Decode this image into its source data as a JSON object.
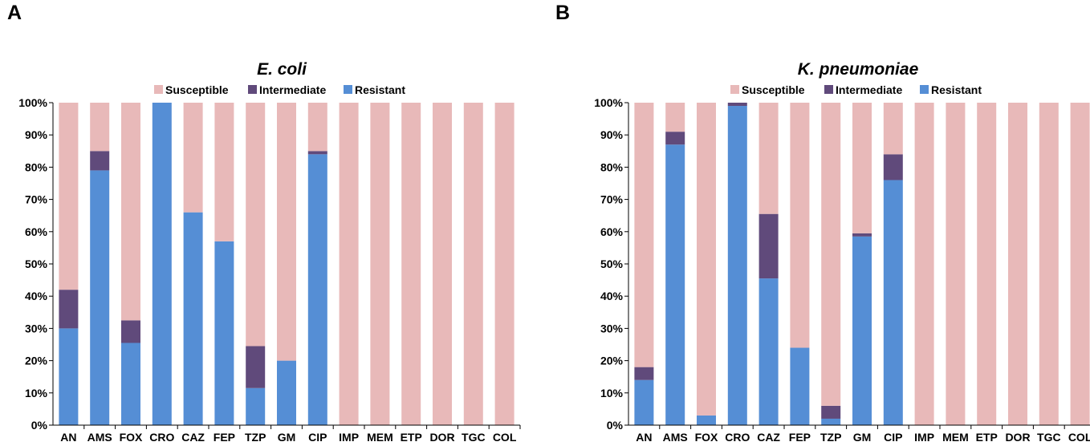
{
  "panels": [
    {
      "letter": "A"
    },
    {
      "letter": "B"
    }
  ],
  "colors": {
    "susceptible": "#e8b9b9",
    "intermediate": "#604a7b",
    "resistant": "#558ed5",
    "axis": "#000000"
  },
  "chart_data": [
    {
      "type": "bar",
      "stacked": true,
      "title": "E. coli",
      "categories": [
        "AN",
        "AMS",
        "FOX",
        "CRO",
        "CAZ",
        "FEP",
        "TZP",
        "GM",
        "CIP",
        "IMP",
        "MEM",
        "ETP",
        "DOR",
        "TGC",
        "COL"
      ],
      "series": [
        {
          "name": "Resistant",
          "values": [
            30,
            79,
            25.5,
            100,
            66,
            57,
            11.5,
            20,
            84,
            0,
            0,
            0,
            0,
            0,
            0
          ]
        },
        {
          "name": "Intermediate",
          "values": [
            12,
            6,
            7,
            0,
            0,
            0,
            13,
            0,
            1,
            0,
            0,
            0,
            0,
            0,
            0
          ]
        },
        {
          "name": "Susceptible",
          "values": [
            58,
            15,
            67.5,
            0,
            34,
            43,
            75.5,
            80,
            15,
            100,
            100,
            100,
            100,
            100,
            100
          ]
        }
      ],
      "legend": [
        "Susceptible",
        "Intermediate",
        "Resistant"
      ],
      "legend_position": "top",
      "yticks": [
        "0%",
        "10%",
        "20%",
        "30%",
        "40%",
        "50%",
        "60%",
        "70%",
        "80%",
        "90%",
        "100%"
      ],
      "ylim": [
        0,
        100
      ],
      "xlabel": "",
      "ylabel": ""
    },
    {
      "type": "bar",
      "stacked": true,
      "title": "K. pneumoniae",
      "categories": [
        "AN",
        "AMS",
        "FOX",
        "CRO",
        "CAZ",
        "FEP",
        "TZP",
        "GM",
        "CIP",
        "IMP",
        "MEM",
        "ETP",
        "DOR",
        "TGC",
        "COL"
      ],
      "series": [
        {
          "name": "Resistant",
          "values": [
            14,
            87,
            3,
            99,
            45.5,
            24,
            2,
            58.5,
            76,
            0,
            0,
            0,
            0,
            0,
            0
          ]
        },
        {
          "name": "Intermediate",
          "values": [
            4,
            4,
            0,
            1,
            20,
            0,
            4,
            1,
            8,
            0,
            0,
            0,
            0,
            0,
            0
          ]
        },
        {
          "name": "Susceptible",
          "values": [
            82,
            9,
            97,
            0,
            34.5,
            76,
            94,
            40.5,
            16,
            100,
            100,
            100,
            100,
            100,
            100
          ]
        }
      ],
      "legend": [
        "Susceptible",
        "Intermediate",
        "Resistant"
      ],
      "legend_position": "top",
      "yticks": [
        "0%",
        "10%",
        "20%",
        "30%",
        "40%",
        "50%",
        "60%",
        "70%",
        "80%",
        "90%",
        "100%"
      ],
      "ylim": [
        0,
        100
      ],
      "xlabel": "",
      "ylabel": ""
    }
  ]
}
